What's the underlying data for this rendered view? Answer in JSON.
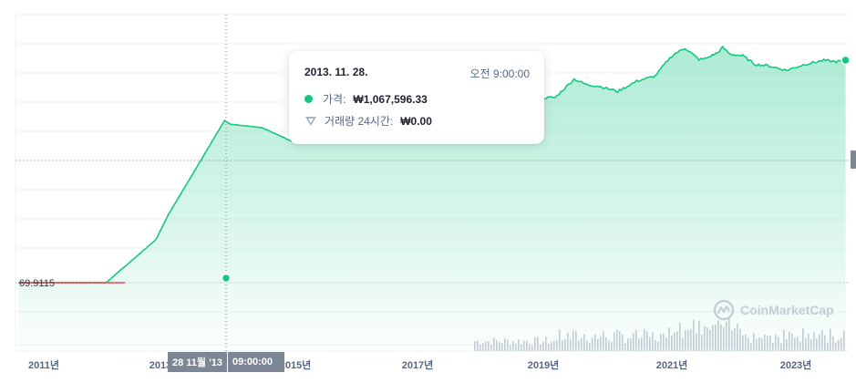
{
  "chart_data": {
    "type": "area",
    "title": "",
    "xlabel": "",
    "ylabel": "",
    "x_tick_labels": [
      "2011년",
      "2013년",
      "2015년",
      "2017년",
      "2019년",
      "2021년",
      "2023년"
    ],
    "y_reference_label": "69.9115",
    "series": [
      {
        "values_krw": [
          [
            2010.6,
            70
          ],
          [
            2011.0,
            70
          ],
          [
            2012.0,
            70
          ],
          [
            2012.8,
            900
          ],
          [
            2013.0,
            4000
          ],
          [
            2013.9,
            1067596.33
          ],
          [
            2014.0,
            850000
          ],
          [
            2014.5,
            700000
          ],
          [
            2015.0,
            300000
          ],
          [
            2015.5,
            280000
          ],
          [
            2016.0,
            450000
          ],
          [
            2016.5,
            750000
          ],
          [
            2017.0,
            1100000
          ],
          [
            2017.3,
            1400000
          ],
          [
            2017.6,
            3500000
          ],
          [
            2017.8,
            8000000
          ],
          [
            2017.96,
            24000000
          ],
          [
            2018.05,
            17000000
          ],
          [
            2018.3,
            9000000
          ],
          [
            2018.6,
            7500000
          ],
          [
            2018.9,
            4000000
          ],
          [
            2019.2,
            4200000
          ],
          [
            2019.5,
            12500000
          ],
          [
            2019.7,
            9000000
          ],
          [
            2019.9,
            8200000
          ],
          [
            2020.2,
            6000000
          ],
          [
            2020.5,
            11000000
          ],
          [
            2020.8,
            15000000
          ],
          [
            2021.0,
            38000000
          ],
          [
            2021.1,
            55000000
          ],
          [
            2021.28,
            79000000
          ],
          [
            2021.5,
            40000000
          ],
          [
            2021.6,
            42000000
          ],
          [
            2021.8,
            60000000
          ],
          [
            2021.88,
            82000000
          ],
          [
            2022.0,
            55000000
          ],
          [
            2022.2,
            50000000
          ],
          [
            2022.4,
            30000000
          ],
          [
            2022.6,
            28000000
          ],
          [
            2022.9,
            21000000
          ],
          [
            2023.2,
            30000000
          ],
          [
            2023.5,
            38000000
          ],
          [
            2023.7,
            35000000
          ],
          [
            2023.85,
            38500000
          ]
        ]
      }
    ],
    "reference_price_krw": 69.9115,
    "reference_line_color": "#ea3943",
    "line_color": "#16c784",
    "area_fill_color": "#16c784",
    "volume_bar_color": "#c6ccd6",
    "scale": "log",
    "grid": true
  },
  "tooltip": {
    "date": "2013. 11. 28.",
    "time_label": "오전 9:00:00",
    "price_label": "가격:",
    "price_value": "₩1,067,596.33",
    "volume_label": "거래량 24시간:",
    "volume_value": "₩0.00"
  },
  "x_badge": {
    "date": "28 11월 '13",
    "time": "09:00:00"
  },
  "watermark": {
    "text": "CoinMarketCap"
  }
}
